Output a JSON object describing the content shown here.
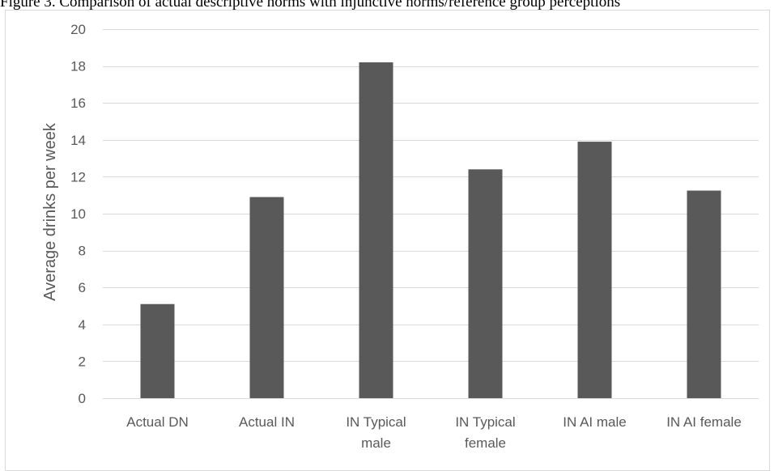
{
  "caption": "Figure 3. Comparison of actual descriptive norms with injunctive norms/reference group perceptions",
  "colors": {
    "bar": "#595959",
    "gridline": "#d9d9d9",
    "text": "#595959",
    "frame": "#d9d9d9"
  },
  "chart_data": {
    "type": "bar",
    "title": "",
    "xlabel": "",
    "ylabel": "Average drinks per week",
    "categories": [
      [
        "Actual DN"
      ],
      [
        "Actual IN"
      ],
      [
        "IN Typical",
        "male"
      ],
      [
        "IN Typical",
        "female"
      ],
      [
        "IN AI male"
      ],
      [
        "IN AI female"
      ]
    ],
    "series": [
      {
        "name": "",
        "values": [
          5.1,
          10.9,
          18.2,
          12.4,
          13.9,
          11.25
        ]
      }
    ],
    "ylim": [
      0,
      20
    ],
    "yticks": [
      0,
      2,
      4,
      6,
      8,
      10,
      12,
      14,
      16,
      18,
      20
    ],
    "grid": true,
    "legend": "none"
  }
}
